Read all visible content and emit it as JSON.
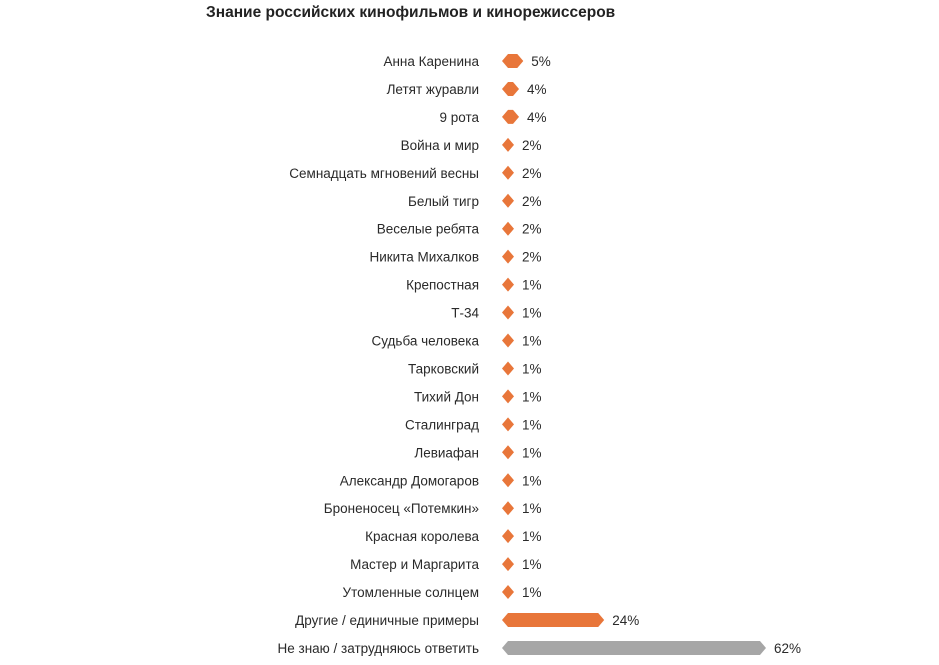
{
  "chart_data": {
    "type": "bar",
    "title": "Знание российских кинофильмов и кинорежиссеров",
    "xlabel": "",
    "ylabel": "",
    "orientation": "horizontal",
    "categories": [
      "Анна Каренина",
      "Летят журавли",
      "9 рота",
      "Война и мир",
      "Семнадцать мгновений весны",
      "Белый тигр",
      "Веселые ребята",
      "Никита Михалков",
      "Крепостная",
      "Т-34",
      "Судьба человека",
      "Тарковский",
      "Тихий Дон",
      "Сталинград",
      "Левиафан",
      "Александр Домогаров",
      "Броненосец «Потемкин»",
      "Красная королева",
      "Мастер и Маргарита",
      "Утомленные солнцем",
      "Другие / единичные примеры",
      "Не знаю / затрудняюсь ответить"
    ],
    "values": [
      5,
      4,
      4,
      2,
      2,
      2,
      2,
      2,
      1,
      1,
      1,
      1,
      1,
      1,
      1,
      1,
      1,
      1,
      1,
      1,
      24,
      62
    ],
    "value_labels": [
      "5%",
      "4%",
      "4%",
      "2%",
      "2%",
      "2%",
      "2%",
      "2%",
      "1%",
      "1%",
      "1%",
      "1%",
      "1%",
      "1%",
      "1%",
      "1%",
      "1%",
      "1%",
      "1%",
      "1%",
      "24%",
      "62%"
    ],
    "bar_colors": [
      "#e8763a",
      "#e8763a",
      "#e8763a",
      "#e8763a",
      "#e8763a",
      "#e8763a",
      "#e8763a",
      "#e8763a",
      "#e8763a",
      "#e8763a",
      "#e8763a",
      "#e8763a",
      "#e8763a",
      "#e8763a",
      "#e8763a",
      "#e8763a",
      "#e8763a",
      "#e8763a",
      "#e8763a",
      "#e8763a",
      "#e8763a",
      "#a6a6a6"
    ],
    "xlim": [
      0,
      62
    ],
    "grid": false,
    "legend": "none",
    "bar_shape": "hexagon"
  }
}
